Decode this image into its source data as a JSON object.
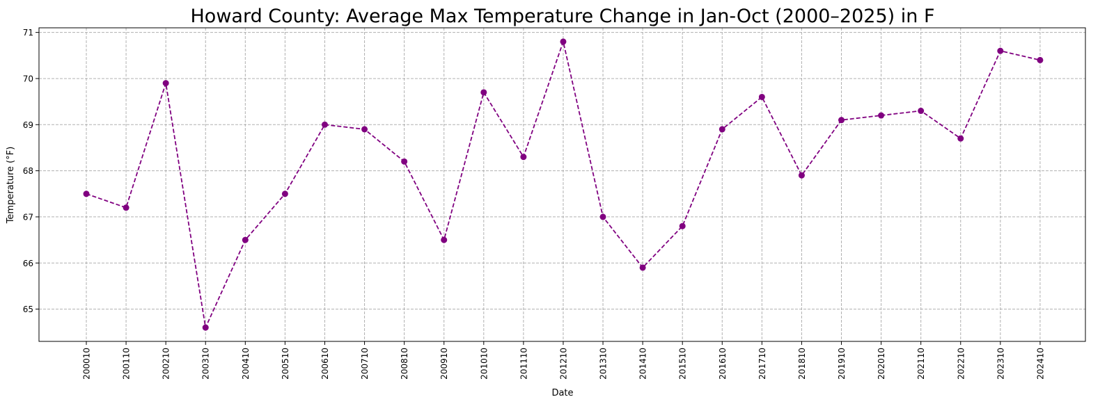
{
  "chart_data": {
    "type": "line",
    "title": "Howard County: Average Max Temperature Change in Jan-Oct (2000–2025) in F",
    "xlabel": "Date",
    "ylabel": "Temperature (°F)",
    "categories": [
      "200010",
      "200110",
      "200210",
      "200310",
      "200410",
      "200510",
      "200610",
      "200710",
      "200810",
      "200910",
      "201010",
      "201110",
      "201210",
      "201310",
      "201410",
      "201510",
      "201610",
      "201710",
      "201810",
      "201910",
      "202010",
      "202110",
      "202210",
      "202310",
      "202410"
    ],
    "series": [
      {
        "values": [
          67.5,
          67.2,
          69.9,
          64.6,
          66.5,
          67.5,
          69.0,
          68.9,
          68.2,
          66.5,
          69.7,
          68.3,
          70.8,
          67.0,
          65.9,
          66.8,
          68.9,
          69.6,
          67.9,
          69.1,
          69.2,
          69.3,
          68.7,
          70.6,
          70.4
        ],
        "color": "#800080",
        "line_style": "dashed",
        "marker": "circle"
      }
    ],
    "ylim": [
      64.3,
      71.1
    ],
    "yticks": [
      65,
      66,
      67,
      68,
      69,
      70,
      71
    ],
    "grid": true,
    "x_tick_rotation": 90
  }
}
